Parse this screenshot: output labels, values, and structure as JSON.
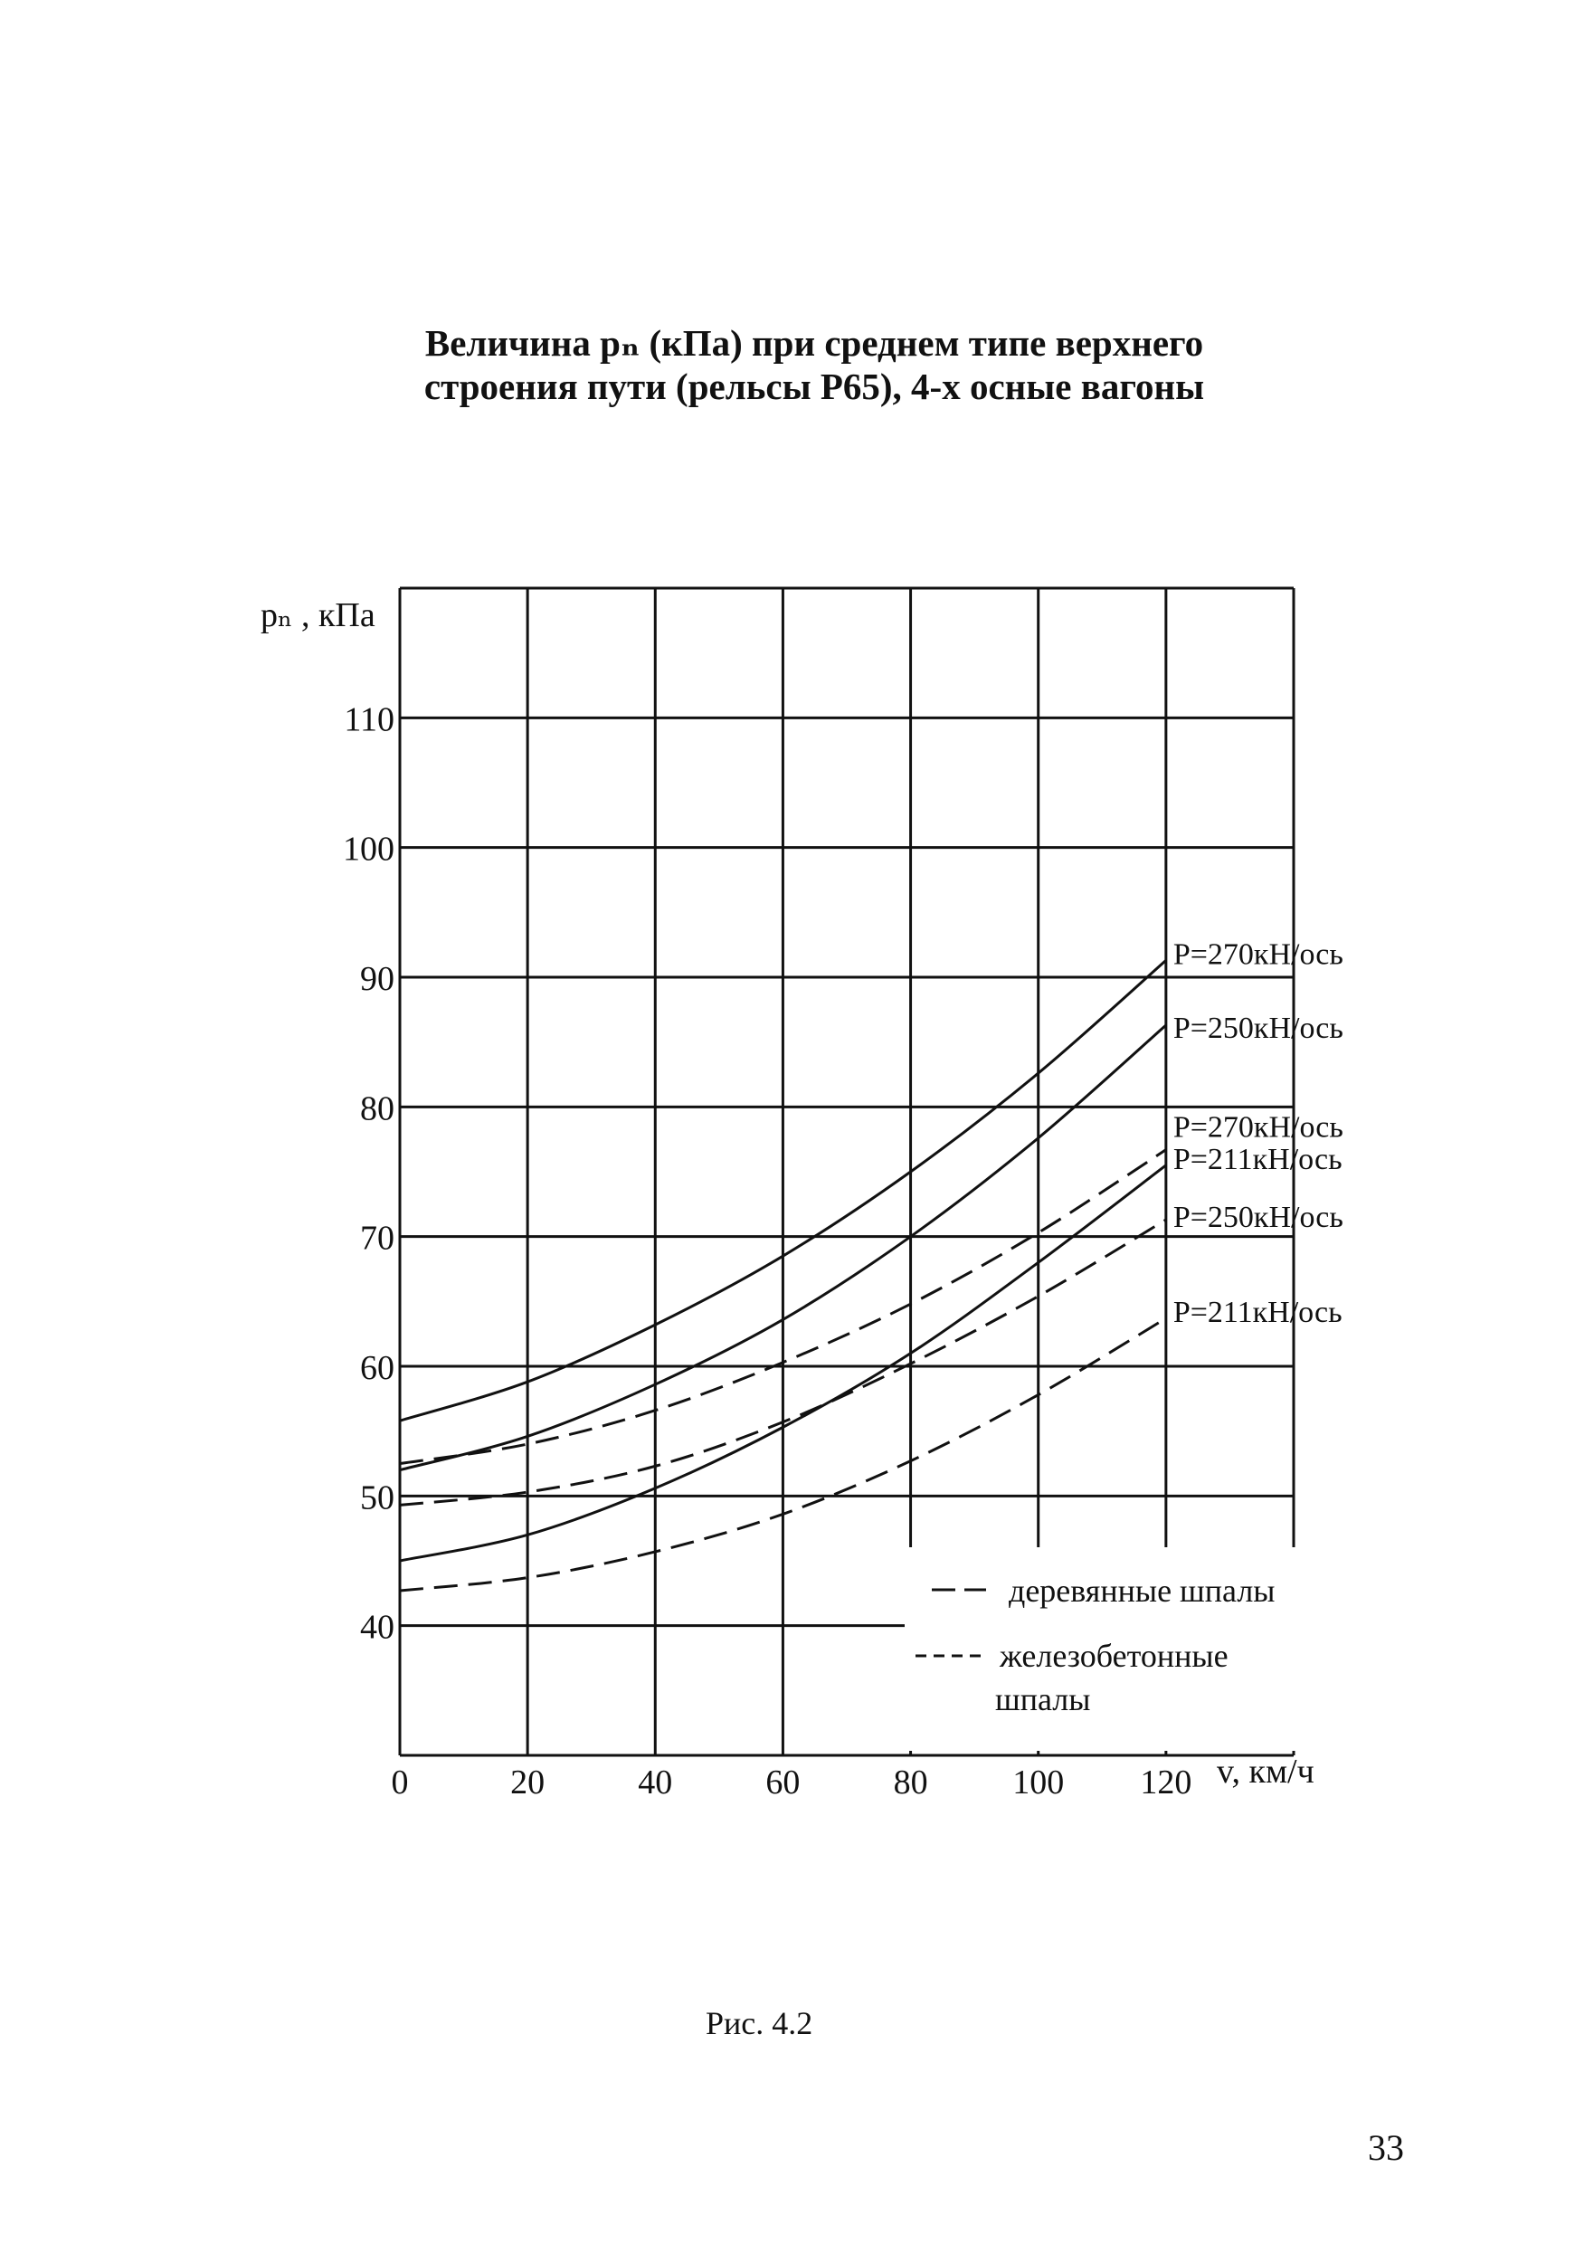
{
  "title_line1": "Величина  pₙ (кПа) при среднем типе верхнего",
  "title_line2": "строения пути (рельсы Р65), 4-х осные вагоны",
  "figure_caption": "Рис. 4.2",
  "page_number": "33",
  "chart_data": {
    "type": "line",
    "title": "",
    "xlabel": "v, км/ч",
    "ylabel": "pₙ , кПа",
    "xlim": [
      0,
      140
    ],
    "ylim": [
      30,
      120
    ],
    "x_ticks": [
      0,
      20,
      40,
      60,
      80,
      100,
      120
    ],
    "y_ticks": [
      40,
      50,
      60,
      70,
      80,
      90,
      100,
      110
    ],
    "grid": true,
    "legend_position": "bottom-right",
    "legend": [
      {
        "label": "деревянные шпалы",
        "style": "long-dash"
      },
      {
        "label": "железобетонные шпалы",
        "style": "short-dash"
      }
    ],
    "series": [
      {
        "name": "P=270кН/ось",
        "sleepers": "деревянные шпалы",
        "style": "solid",
        "x": [
          0,
          20,
          40,
          60,
          80,
          100,
          120
        ],
        "y": [
          55.8,
          58.8,
          63.2,
          68.5,
          75.0,
          82.6,
          91.3
        ]
      },
      {
        "name": "P=250кН/ось",
        "sleepers": "деревянные шпалы",
        "style": "solid",
        "x": [
          0,
          20,
          40,
          60,
          80,
          100,
          120
        ],
        "y": [
          52.0,
          54.6,
          58.6,
          63.6,
          70.0,
          77.6,
          86.3
        ]
      },
      {
        "name": "P=211кН/ось",
        "sleepers": "деревянные шпалы",
        "style": "solid",
        "x": [
          0,
          20,
          40,
          60,
          80,
          100,
          120
        ],
        "y": [
          45.0,
          47.0,
          50.6,
          55.3,
          61.0,
          68.0,
          75.5
        ]
      },
      {
        "name": "P=270кН/ось",
        "sleepers": "железобетонные шпалы",
        "style": "dashed",
        "x": [
          0,
          20,
          40,
          60,
          80,
          100,
          120
        ],
        "y": [
          52.5,
          54.0,
          56.6,
          60.3,
          64.8,
          70.3,
          76.7
        ]
      },
      {
        "name": "P=250кН/ось",
        "sleepers": "железобетонные шпалы",
        "style": "dashed",
        "x": [
          0,
          20,
          40,
          60,
          80,
          100,
          120
        ],
        "y": [
          49.3,
          50.3,
          52.3,
          55.7,
          60.2,
          65.4,
          71.3
        ]
      },
      {
        "name": "P=211кН/ось",
        "sleepers": "железобетонные шпалы",
        "style": "dashed",
        "x": [
          0,
          20,
          40,
          60,
          80,
          100,
          120
        ],
        "y": [
          42.7,
          43.7,
          45.7,
          48.6,
          52.7,
          57.8,
          63.7
        ]
      }
    ]
  }
}
